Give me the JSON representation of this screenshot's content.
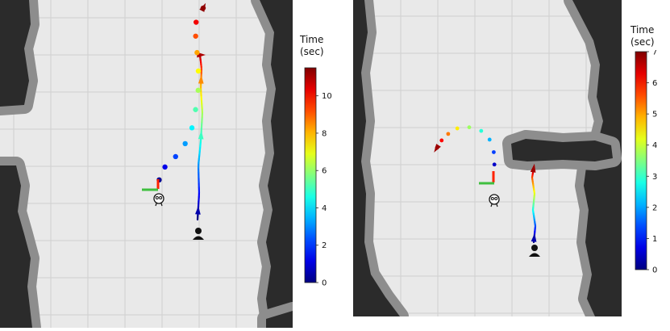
{
  "chart_data": [
    {
      "type": "scatter",
      "colorbar": {
        "title_line1": "Time",
        "title_line2": "(sec)",
        "ticks": [
          "0",
          "2",
          "4",
          "6",
          "8",
          "10"
        ],
        "range": [
          0,
          11.5
        ],
        "colormap": "jet"
      },
      "person_trajectory_time": [
        0.0,
        1.0,
        2.0,
        3.0,
        4.0,
        5.0,
        6.0,
        7.0,
        8.0,
        9.0,
        10.0,
        11.0
      ],
      "person_markers_time": [
        0.5,
        5.0,
        8.5,
        11.0
      ],
      "robot_predicted_time": [
        0.2,
        1.2,
        2.2,
        3.2,
        4.2,
        5.2,
        6.2,
        7.2,
        8.2,
        9.2,
        10.2,
        11.3
      ]
    },
    {
      "type": "scatter",
      "colorbar": {
        "title_line1": "Time",
        "title_line2": "(sec)",
        "ticks": [
          "0",
          "1",
          "2",
          "3",
          "4",
          "5",
          "6",
          "7"
        ],
        "range": [
          0,
          7
        ],
        "colormap": "jet"
      },
      "person_trajectory_time": [
        0.0,
        1.0,
        2.0,
        3.0,
        4.0,
        5.0,
        6.0,
        7.0
      ],
      "person_markers_time": [
        0.3,
        6.8
      ],
      "robot_predicted_time": [
        0.5,
        1.3,
        2.1,
        2.9,
        3.7,
        4.5,
        5.3,
        6.1,
        6.8
      ]
    }
  ]
}
